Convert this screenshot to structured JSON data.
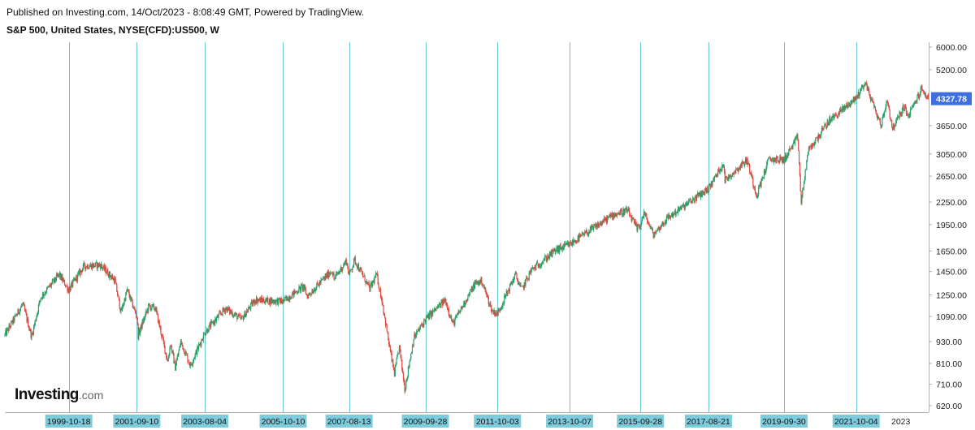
{
  "header": {
    "published": "Published on Investing.com, 14/Oct/2023 - 8:08:49 GMT, Powered by TradingView.",
    "symbol": "S&P 500, United States, NYSE(CFD):US500, W"
  },
  "logo": {
    "main": "Investing",
    "suffix": ".com"
  },
  "colors": {
    "up": "#26a269",
    "down": "#e0463f",
    "vline": "#6fc3d6",
    "date_label_bg": "#7ecbdb",
    "price_badge_bg": "#3d6fe0",
    "axis": "#b0b0b0"
  },
  "chart_data": {
    "type": "line",
    "subtype": "weekly candlestick",
    "y_scale": "log",
    "ylim": [
      620,
      6000
    ],
    "y_ticks": [
      "6000.00",
      "5200.00",
      "4327.78",
      "3650.00",
      "3050.00",
      "2650.00",
      "2250.00",
      "1950.00",
      "1650.00",
      "1450.00",
      "1250.00",
      "1090.00",
      "930.00",
      "810.00",
      "710.00",
      "620.00"
    ],
    "y_tick_values": [
      6000,
      5200,
      3650,
      3050,
      2650,
      2250,
      1950,
      1650,
      1450,
      1250,
      1090,
      930,
      810,
      710,
      620
    ],
    "last_price": {
      "label": "4327.78",
      "value": 4327.78
    },
    "xlim": [
      "1998-01-05",
      "2023-10-13"
    ],
    "vertical_markers": [
      {
        "date": "1999-10-18",
        "label": "1999-10-18"
      },
      {
        "date": "2001-09-10",
        "label": "2001-09-10"
      },
      {
        "date": "2003-08-04",
        "label": "2003-08-04"
      },
      {
        "date": "2005-10-10",
        "label": "2005-10-10"
      },
      {
        "date": "2007-08-13",
        "label": "2007-08-13"
      },
      {
        "date": "2009-09-28",
        "label": "2009-09-28"
      },
      {
        "date": "2011-10-03",
        "label": "2011-10-03"
      },
      {
        "date": "2013-10-07",
        "label": "2013-10-07"
      },
      {
        "date": "2015-09-28",
        "label": "2015-09-28"
      },
      {
        "date": "2017-08-21",
        "label": "2017-08-21"
      },
      {
        "date": "2019-09-30",
        "label": "2019-09-30"
      },
      {
        "date": "2021-10-04",
        "label": "2021-10-04"
      }
    ],
    "x_tick_labels": [
      "2023"
    ],
    "x_tick_dates": [
      "2023-01-02"
    ],
    "series": [
      {
        "x": [
          "1998-01-05",
          "1998-07-06",
          "1998-10-05",
          "1999-01-04",
          "1999-07-12",
          "1999-10-18",
          "2000-03-20",
          "2000-09-04",
          "2001-01-29",
          "2001-04-02",
          "2001-06-04",
          "2001-09-10",
          "2001-09-24",
          "2002-01-07",
          "2002-03-18",
          "2002-07-22",
          "2002-08-19",
          "2002-10-07",
          "2002-12-02",
          "2003-03-10",
          "2003-08-04",
          "2004-03-01",
          "2004-08-09",
          "2004-12-27",
          "2005-10-10",
          "2006-05-01",
          "2006-06-12",
          "2007-02-19",
          "2007-03-12",
          "2007-07-16",
          "2007-08-13",
          "2007-10-08",
          "2008-03-10",
          "2008-05-19",
          "2008-07-14",
          "2008-10-06",
          "2008-11-17",
          "2009-01-05",
          "2009-03-02",
          "2009-06-01",
          "2009-09-28",
          "2010-04-19",
          "2010-07-05",
          "2011-02-14",
          "2011-04-25",
          "2011-08-08",
          "2011-10-03",
          "2012-04-02",
          "2012-06-04",
          "2012-09-10",
          "2013-05-20",
          "2013-10-07",
          "2014-12-29",
          "2015-05-18",
          "2015-08-24",
          "2015-09-28",
          "2015-11-02",
          "2016-02-08",
          "2016-06-27",
          "2017-08-21",
          "2018-01-22",
          "2018-02-05",
          "2018-09-17",
          "2018-12-24",
          "2019-04-29",
          "2019-09-30",
          "2020-02-17",
          "2020-03-23",
          "2020-06-01",
          "2020-12-28",
          "2021-10-04",
          "2022-01-03",
          "2022-06-13",
          "2022-08-15",
          "2022-10-10",
          "2023-02-06",
          "2023-03-13",
          "2023-07-31",
          "2023-10-13"
        ],
        "y": [
          970,
          1180,
          960,
          1230,
          1420,
          1290,
          1500,
          1510,
          1370,
          1120,
          1290,
          1090,
          970,
          1160,
          1150,
          820,
          920,
          790,
          930,
          800,
          985,
          1150,
          1070,
          1210,
          1200,
          1320,
          1240,
          1460,
          1380,
          1550,
          1420,
          1560,
          1300,
          1420,
          1200,
          870,
          760,
          900,
          690,
          950,
          1070,
          1210,
          1040,
          1340,
          1365,
          1130,
          1110,
          1420,
          1290,
          1460,
          1660,
          1720,
          2080,
          2130,
          1900,
          1950,
          2100,
          1830,
          2030,
          2450,
          2880,
          2580,
          2940,
          2350,
          2950,
          2940,
          3390,
          2240,
          3100,
          3750,
          4350,
          4800,
          3650,
          4300,
          3580,
          4130,
          3850,
          4590,
          4327.78
        ]
      }
    ]
  }
}
